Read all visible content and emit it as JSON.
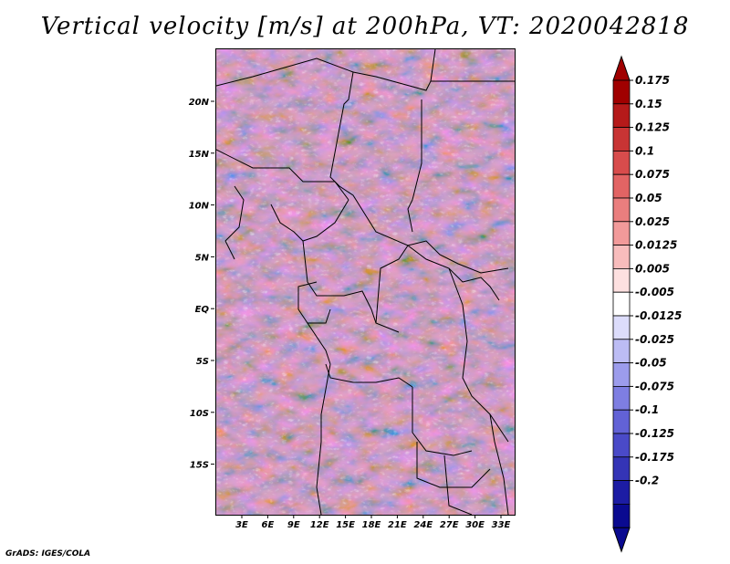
{
  "title": "Vertical velocity [m/s] at 200hPa, VT: 2020042818",
  "credit": "GrADS: IGES/COLA",
  "map": {
    "variable": "Vertical velocity",
    "units": "m/s",
    "level": "200hPa",
    "valid_time": "2020042818",
    "lon_ticks": [
      "3E",
      "6E",
      "9E",
      "12E",
      "15E",
      "18E",
      "21E",
      "24E",
      "27E",
      "30E",
      "33E"
    ],
    "lat_ticks": [
      "20N",
      "15N",
      "10N",
      "5N",
      "EQ",
      "5S",
      "10S",
      "15S"
    ]
  },
  "colorbar": {
    "labels": [
      "0.175",
      "0.15",
      "0.125",
      "0.1",
      "0.075",
      "0.05",
      "0.025",
      "0.0125",
      "0.005",
      "-0.005",
      "-0.0125",
      "-0.025",
      "-0.05",
      "-0.075",
      "-0.1",
      "-0.125",
      "-0.175",
      "-0.2"
    ],
    "colors": [
      "#a00000",
      "#b51a1a",
      "#c83434",
      "#d84c4c",
      "#e26464",
      "#ea7e7e",
      "#f29a9a",
      "#f8bcbc",
      "#fde0e0",
      "#ffffff",
      "#dcdcfb",
      "#bcbcf4",
      "#9c9cec",
      "#7e7ee2",
      "#6262d6",
      "#4a4ac8",
      "#3434b6",
      "#1c1ca4",
      "#0a0a90"
    ],
    "top_arrow_color": "#a00000",
    "bottom_arrow_color": "#0a0a90"
  }
}
